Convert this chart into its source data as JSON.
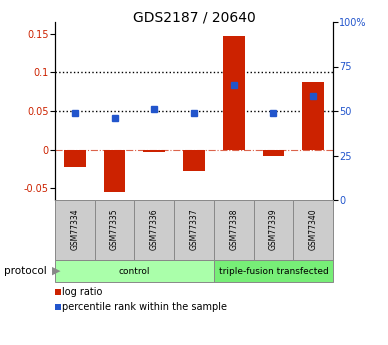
{
  "title": "GDS2187 / 20640",
  "samples": [
    "GSM77334",
    "GSM77335",
    "GSM77336",
    "GSM77337",
    "GSM77338",
    "GSM77339",
    "GSM77340"
  ],
  "log_ratio": [
    -0.022,
    -0.055,
    -0.003,
    -0.028,
    0.147,
    -0.008,
    0.088
  ],
  "percentile_rank": [
    0.048,
    0.041,
    0.053,
    0.048,
    0.083,
    0.048,
    0.07
  ],
  "ylim_left": [
    -0.065,
    0.165
  ],
  "ylim_right": [
    0,
    100
  ],
  "yticks_left": [
    -0.05,
    0.0,
    0.05,
    0.1,
    0.15
  ],
  "ytick_labels_left": [
    "-0.05",
    "0",
    "0.05",
    "0.1",
    "0.15"
  ],
  "yticks_right": [
    0,
    25,
    50,
    75,
    100
  ],
  "ytick_labels_right": [
    "0",
    "25",
    "50",
    "75",
    "100%"
  ],
  "hlines_dotted": [
    0.05,
    0.1
  ],
  "hline_dashdot": 0.0,
  "bar_color": "#cc2200",
  "dot_color": "#2255cc",
  "protocol_groups": [
    {
      "label": "control",
      "start": 0,
      "end": 4,
      "color": "#aaffaa"
    },
    {
      "label": "triple-fusion transfected",
      "start": 4,
      "end": 7,
      "color": "#77ee77"
    }
  ],
  "protocol_label": "protocol",
  "legend_items": [
    {
      "label": "log ratio",
      "color": "#cc2200"
    },
    {
      "label": "percentile rank within the sample",
      "color": "#2255cc"
    }
  ],
  "bar_width": 0.55,
  "background_color": "#ffffff",
  "fig_width": 3.88,
  "fig_height": 3.45,
  "dpi": 100
}
